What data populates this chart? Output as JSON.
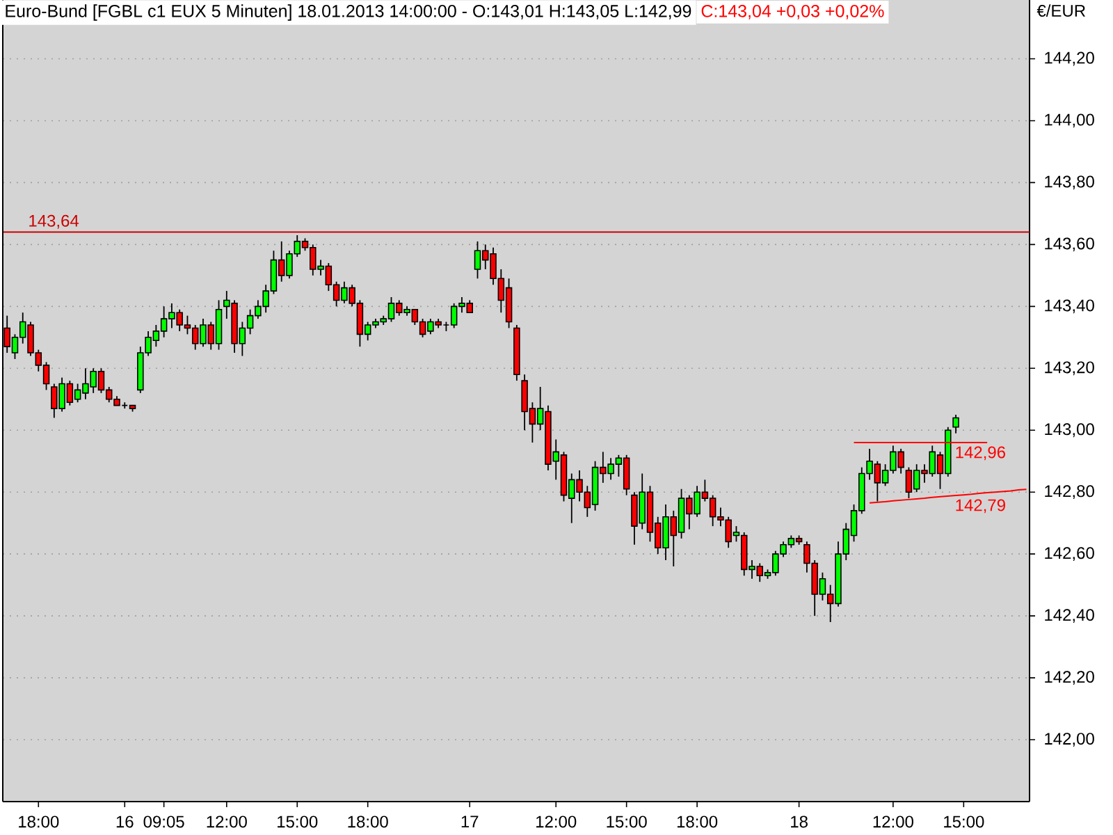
{
  "chart_data": {
    "type": "candlestick",
    "title": "Euro-Bund [FGBL c1 EUX 5 Minuten] 18.01.2013 14:00:00 - O:143,01 H:143,05 L:142,99",
    "subtitle": "C:143,04 +0,03 +0,02%",
    "ylabel": "€/EUR",
    "categories": [
      null,
      null,
      null,
      null,
      "18:00",
      null,
      null,
      null,
      null,
      null,
      null,
      null,
      null,
      null,
      null,
      "16",
      null,
      null,
      null,
      null,
      "09:05",
      null,
      null,
      null,
      null,
      null,
      null,
      null,
      "12:00",
      null,
      null,
      null,
      null,
      null,
      null,
      null,
      null,
      "15:00",
      null,
      null,
      null,
      null,
      null,
      null,
      null,
      null,
      "18:00",
      null,
      null,
      null,
      null,
      null,
      null,
      null,
      null,
      null,
      null,
      null,
      null,
      "17",
      null,
      null,
      null,
      null,
      null,
      null,
      null,
      null,
      null,
      null,
      "12:00",
      null,
      null,
      null,
      null,
      null,
      null,
      null,
      null,
      "15:00",
      null,
      null,
      null,
      null,
      null,
      null,
      null,
      null,
      "18:00",
      null,
      null,
      null,
      null,
      null,
      null,
      null,
      null,
      null,
      null,
      null,
      null,
      "18",
      null,
      null,
      null,
      null,
      null,
      null,
      null,
      null,
      null,
      null,
      null,
      "12:00",
      null,
      null,
      null,
      null,
      null,
      null,
      null,
      null,
      "15:00",
      null,
      null,
      null,
      null,
      null,
      null,
      null,
      null
    ],
    "ohlc": [
      [
        143.33,
        143.37,
        143.25,
        143.27
      ],
      [
        143.25,
        143.31,
        143.23,
        143.3
      ],
      [
        143.3,
        143.38,
        143.28,
        143.35
      ],
      [
        143.34,
        143.35,
        143.24,
        143.25
      ],
      [
        143.25,
        143.26,
        143.19,
        143.21
      ],
      [
        143.21,
        143.22,
        143.13,
        143.15
      ],
      [
        143.14,
        143.15,
        143.04,
        143.07
      ],
      [
        143.07,
        143.17,
        143.06,
        143.15
      ],
      [
        143.15,
        143.16,
        143.08,
        143.09
      ],
      [
        143.1,
        143.15,
        143.09,
        143.13
      ],
      [
        143.12,
        143.2,
        143.1,
        143.15
      ],
      [
        143.14,
        143.2,
        143.12,
        143.19
      ],
      [
        143.19,
        143.2,
        143.12,
        143.13
      ],
      [
        143.13,
        143.14,
        143.09,
        143.1
      ],
      [
        143.1,
        143.11,
        143.08,
        143.08
      ],
      [
        143.08,
        143.09,
        143.07,
        143.08
      ],
      [
        143.08,
        143.08,
        143.06,
        143.07
      ],
      [
        143.13,
        143.27,
        143.12,
        143.25
      ],
      [
        143.25,
        143.32,
        143.24,
        143.3
      ],
      [
        143.29,
        143.34,
        143.27,
        143.32
      ],
      [
        143.32,
        143.4,
        143.3,
        143.36
      ],
      [
        143.36,
        143.41,
        143.33,
        143.38
      ],
      [
        143.38,
        143.39,
        143.32,
        143.34
      ],
      [
        143.34,
        143.37,
        143.31,
        143.33
      ],
      [
        143.33,
        143.34,
        143.26,
        143.28
      ],
      [
        143.28,
        143.36,
        143.27,
        143.34
      ],
      [
        143.34,
        143.35,
        143.26,
        143.28
      ],
      [
        143.28,
        143.42,
        143.26,
        143.39
      ],
      [
        143.4,
        143.45,
        143.36,
        143.42
      ],
      [
        143.41,
        143.42,
        143.25,
        143.28
      ],
      [
        143.28,
        143.35,
        143.24,
        143.33
      ],
      [
        143.33,
        143.39,
        143.31,
        143.37
      ],
      [
        143.37,
        143.42,
        143.36,
        143.4
      ],
      [
        143.4,
        143.47,
        143.38,
        143.45
      ],
      [
        143.45,
        143.58,
        143.44,
        143.55
      ],
      [
        143.55,
        143.61,
        143.48,
        143.5
      ],
      [
        143.5,
        143.58,
        143.49,
        143.57
      ],
      [
        143.57,
        143.63,
        143.56,
        143.61
      ],
      [
        143.61,
        143.62,
        143.58,
        143.59
      ],
      [
        143.59,
        143.6,
        143.5,
        143.52
      ],
      [
        143.52,
        143.55,
        143.5,
        143.53
      ],
      [
        143.53,
        143.54,
        143.45,
        143.47
      ],
      [
        143.47,
        143.48,
        143.4,
        143.42
      ],
      [
        143.42,
        143.48,
        143.41,
        143.46
      ],
      [
        143.46,
        143.47,
        143.4,
        143.41
      ],
      [
        143.41,
        143.42,
        143.27,
        143.31
      ],
      [
        143.31,
        143.35,
        143.29,
        143.34
      ],
      [
        143.34,
        143.36,
        143.33,
        143.35
      ],
      [
        143.35,
        143.37,
        143.34,
        143.36
      ],
      [
        143.36,
        143.43,
        143.35,
        143.41
      ],
      [
        143.41,
        143.42,
        143.37,
        143.38
      ],
      [
        143.38,
        143.4,
        143.37,
        143.39
      ],
      [
        143.39,
        143.39,
        143.34,
        143.35
      ],
      [
        143.35,
        143.36,
        143.3,
        143.31
      ],
      [
        143.32,
        143.36,
        143.31,
        143.35
      ],
      [
        143.35,
        143.36,
        143.33,
        143.34
      ],
      [
        143.34,
        143.35,
        143.32,
        143.34
      ],
      [
        143.34,
        143.41,
        143.33,
        143.4
      ],
      [
        143.4,
        143.43,
        143.38,
        143.41
      ],
      [
        143.41,
        143.42,
        143.38,
        143.38
      ],
      [
        143.52,
        143.61,
        143.49,
        143.58
      ],
      [
        143.58,
        143.6,
        143.52,
        143.55
      ],
      [
        143.57,
        143.59,
        143.47,
        143.49
      ],
      [
        143.49,
        143.52,
        143.38,
        143.42
      ],
      [
        143.46,
        143.49,
        143.33,
        143.35
      ],
      [
        143.33,
        143.34,
        143.16,
        143.18
      ],
      [
        143.16,
        143.18,
        143.0,
        143.06
      ],
      [
        143.07,
        143.09,
        142.96,
        143.02
      ],
      [
        143.02,
        143.14,
        143.0,
        143.07
      ],
      [
        143.06,
        143.08,
        142.87,
        142.89
      ],
      [
        142.9,
        142.97,
        142.84,
        142.93
      ],
      [
        142.92,
        142.93,
        142.77,
        142.79
      ],
      [
        142.78,
        142.86,
        142.7,
        142.84
      ],
      [
        142.84,
        142.87,
        142.77,
        142.8
      ],
      [
        142.8,
        142.82,
        142.72,
        142.75
      ],
      [
        142.76,
        142.9,
        142.74,
        142.88
      ],
      [
        142.88,
        142.93,
        142.83,
        142.86
      ],
      [
        142.86,
        142.91,
        142.84,
        142.89
      ],
      [
        142.89,
        142.92,
        142.85,
        142.91
      ],
      [
        142.91,
        142.92,
        142.79,
        142.81
      ],
      [
        142.79,
        142.8,
        142.63,
        142.69
      ],
      [
        142.7,
        142.86,
        142.68,
        142.8
      ],
      [
        142.8,
        142.82,
        142.64,
        142.67
      ],
      [
        142.7,
        142.72,
        142.6,
        142.62
      ],
      [
        142.62,
        142.76,
        142.58,
        142.72
      ],
      [
        142.72,
        142.74,
        142.56,
        142.66
      ],
      [
        142.67,
        142.81,
        142.65,
        142.78
      ],
      [
        142.78,
        142.79,
        142.68,
        142.73
      ],
      [
        142.73,
        142.82,
        142.72,
        142.8
      ],
      [
        142.8,
        142.84,
        142.77,
        142.78
      ],
      [
        142.78,
        142.79,
        142.69,
        142.72
      ],
      [
        142.72,
        142.75,
        142.69,
        142.71
      ],
      [
        142.71,
        142.72,
        142.62,
        142.64
      ],
      [
        142.66,
        142.69,
        142.64,
        142.67
      ],
      [
        142.66,
        142.67,
        142.53,
        142.55
      ],
      [
        142.55,
        142.58,
        142.52,
        142.56
      ],
      [
        142.56,
        142.57,
        142.51,
        142.53
      ],
      [
        142.53,
        142.55,
        142.52,
        142.54
      ],
      [
        142.54,
        142.61,
        142.53,
        142.6
      ],
      [
        142.6,
        142.64,
        142.59,
        142.63
      ],
      [
        142.63,
        142.66,
        142.62,
        142.65
      ],
      [
        142.65,
        142.66,
        142.63,
        142.64
      ],
      [
        142.63,
        142.64,
        142.54,
        142.57
      ],
      [
        142.57,
        142.58,
        142.4,
        142.47
      ],
      [
        142.47,
        142.54,
        142.45,
        142.52
      ],
      [
        142.47,
        142.5,
        142.38,
        142.44
      ],
      [
        142.44,
        142.64,
        142.43,
        142.6
      ],
      [
        142.6,
        142.7,
        142.58,
        142.68
      ],
      [
        142.66,
        142.76,
        142.64,
        142.74
      ],
      [
        142.74,
        142.88,
        142.73,
        142.86
      ],
      [
        142.86,
        142.94,
        142.84,
        142.9
      ],
      [
        142.89,
        142.9,
        142.77,
        142.83
      ],
      [
        142.83,
        142.89,
        142.82,
        142.87
      ],
      [
        142.87,
        142.95,
        142.86,
        142.93
      ],
      [
        142.93,
        142.94,
        142.86,
        142.88
      ],
      [
        142.87,
        142.88,
        142.78,
        142.8
      ],
      [
        142.81,
        142.89,
        142.8,
        142.87
      ],
      [
        142.87,
        142.89,
        142.83,
        142.86
      ],
      [
        142.86,
        142.95,
        142.85,
        142.93
      ],
      [
        142.92,
        142.93,
        142.81,
        142.86
      ],
      [
        142.86,
        143.01,
        142.85,
        143.0
      ],
      [
        143.01,
        143.05,
        142.99,
        143.04
      ],
      null,
      null,
      null,
      null,
      null,
      null,
      null,
      null,
      null
    ],
    "series": [
      {
        "type": "line",
        "name": "142,96",
        "color": "#ff0000",
        "values": [
          null,
          null,
          null,
          null,
          null,
          null,
          null,
          null,
          null,
          null,
          null,
          null,
          null,
          null,
          null,
          null,
          null,
          null,
          null,
          null,
          null,
          null,
          null,
          null,
          null,
          null,
          null,
          null,
          null,
          null,
          null,
          null,
          null,
          null,
          null,
          null,
          null,
          null,
          null,
          null,
          null,
          null,
          null,
          null,
          null,
          null,
          null,
          null,
          null,
          null,
          null,
          null,
          null,
          null,
          null,
          null,
          null,
          null,
          null,
          null,
          null,
          null,
          null,
          null,
          null,
          null,
          null,
          null,
          null,
          null,
          null,
          null,
          null,
          null,
          null,
          null,
          null,
          null,
          null,
          null,
          null,
          null,
          null,
          null,
          null,
          null,
          null,
          null,
          null,
          null,
          null,
          null,
          null,
          null,
          null,
          null,
          null,
          null,
          null,
          null,
          null,
          null,
          null,
          null,
          null,
          null,
          null,
          null,
          142.96,
          142.96,
          142.96,
          142.96,
          142.96,
          142.96,
          142.96,
          142.96,
          142.96,
          142.96,
          142.96,
          142.96,
          142.96,
          142.96,
          142.96,
          142.96,
          142.96,
          142.96,
          null,
          null,
          null,
          null,
          null
        ]
      },
      {
        "type": "line",
        "name": "142,79",
        "color": "#ff0000",
        "values": [
          null,
          null,
          null,
          null,
          null,
          null,
          null,
          null,
          null,
          null,
          null,
          null,
          null,
          null,
          null,
          null,
          null,
          null,
          null,
          null,
          null,
          null,
          null,
          null,
          null,
          null,
          null,
          null,
          null,
          null,
          null,
          null,
          null,
          null,
          null,
          null,
          null,
          null,
          null,
          null,
          null,
          null,
          null,
          null,
          null,
          null,
          null,
          null,
          null,
          null,
          null,
          null,
          null,
          null,
          null,
          null,
          null,
          null,
          null,
          null,
          null,
          null,
          null,
          null,
          null,
          null,
          null,
          null,
          null,
          null,
          null,
          null,
          null,
          null,
          null,
          null,
          null,
          null,
          null,
          null,
          null,
          null,
          null,
          null,
          null,
          null,
          null,
          null,
          null,
          null,
          null,
          null,
          null,
          null,
          null,
          null,
          null,
          null,
          null,
          null,
          null,
          null,
          null,
          null,
          null,
          null,
          null,
          null,
          null,
          null,
          142.765,
          142.767,
          142.769,
          142.772,
          142.774,
          142.776,
          142.778,
          142.78,
          142.783,
          142.785,
          142.787,
          142.789,
          142.791,
          142.793,
          142.796,
          142.798,
          142.8,
          142.802,
          142.804,
          142.807,
          142.809
        ]
      }
    ],
    "ylim": [
      141.8,
      144.39
    ],
    "yticks": [
      {
        "value": 142.0,
        "label": "142,00"
      },
      {
        "value": 142.2,
        "label": "142,20"
      },
      {
        "value": 142.4,
        "label": "142,40"
      },
      {
        "value": 142.6,
        "label": "142,60"
      },
      {
        "value": 142.8,
        "label": "142,80"
      },
      {
        "value": 143.0,
        "label": "143,00"
      },
      {
        "value": 143.2,
        "label": "143,20"
      },
      {
        "value": 143.4,
        "label": "143,40"
      },
      {
        "value": 143.6,
        "label": "143,60"
      },
      {
        "value": 143.8,
        "label": "143,80"
      },
      {
        "value": 144.0,
        "label": "144,00"
      },
      {
        "value": 144.2,
        "label": "144,20"
      }
    ],
    "grid": "y",
    "ref_lines": [
      {
        "axis": "y",
        "value": 143.64,
        "label": "143,64",
        "color": "#cc0000"
      }
    ]
  }
}
